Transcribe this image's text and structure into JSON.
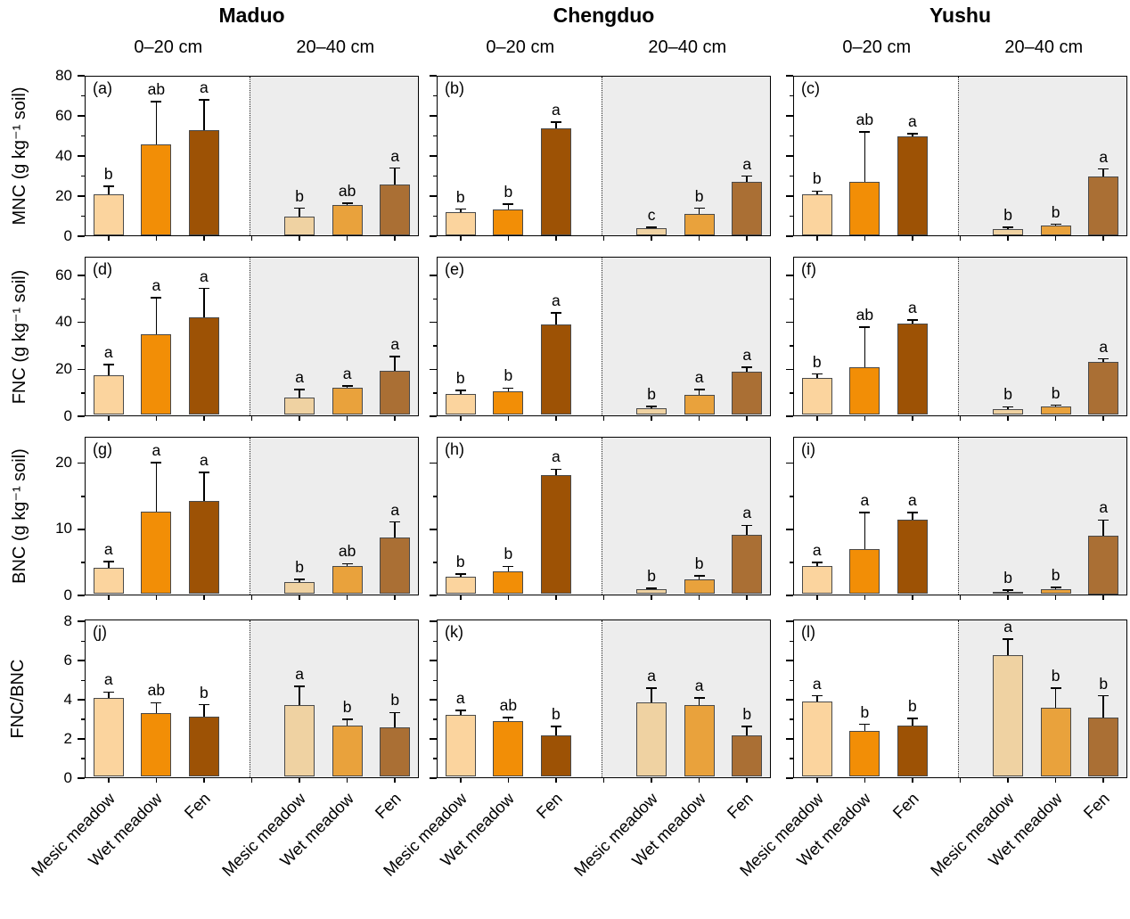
{
  "styles": {
    "bar_colors_0_20": [
      "#FBD49E",
      "#F28E06",
      "#9D5205"
    ],
    "bar_colors_20_40": [
      "#EFD2A2",
      "#E9A23C",
      "#AA6F34"
    ],
    "shade_color": "#EDEDED",
    "frame_color": "#000000"
  },
  "chart_data": {
    "type": "bar",
    "categories": [
      "Mesic meadow",
      "Wet meadow",
      "Fen"
    ],
    "sites": [
      "Maduo",
      "Chengduo",
      "Yushu"
    ],
    "depth_labels": [
      "0–20 cm",
      "20–40 cm"
    ],
    "legend": "none",
    "grid": false,
    "error_bars": true,
    "rows": [
      {
        "ylabel": "MNC (g kg⁻¹ soil)",
        "ylim": [
          0,
          80
        ],
        "major_ticks": [
          0,
          20,
          40,
          60,
          80
        ],
        "minor_ticks": [
          10,
          30,
          50,
          70
        ],
        "panels": [
          {
            "letter": "(a)",
            "site": "Maduo",
            "halves": [
              {
                "depth": "0–20 cm",
                "values": [
                  21,
                  46,
                  53
                ],
                "errors": [
                  4,
                  21,
                  15
                ],
                "sig": [
                  "b",
                  "ab",
                  "a"
                ]
              },
              {
                "depth": "20–40 cm",
                "values": [
                  10,
                  15.5,
                  26
                ],
                "errors": [
                  4,
                  1,
                  8
                ],
                "sig": [
                  "b",
                  "ab",
                  "a"
                ]
              }
            ]
          },
          {
            "letter": "(b)",
            "site": "Chengduo",
            "halves": [
              {
                "depth": "0–20 cm",
                "values": [
                  12,
                  13.5,
                  54
                ],
                "errors": [
                  1.5,
                  2.5,
                  3
                ],
                "sig": [
                  "b",
                  "b",
                  "a"
                ]
              },
              {
                "depth": "20–40 cm",
                "values": [
                  4,
                  11,
                  27
                ],
                "errors": [
                  0.5,
                  3,
                  3
                ],
                "sig": [
                  "c",
                  "b",
                  "a"
                ]
              }
            ]
          },
          {
            "letter": "(c)",
            "site": "Yushu",
            "halves": [
              {
                "depth": "0–20 cm",
                "values": [
                  21,
                  27,
                  50
                ],
                "errors": [
                  1.5,
                  25,
                  1
                ],
                "sig": [
                  "b",
                  "ab",
                  "a"
                ]
              },
              {
                "depth": "20–40 cm",
                "values": [
                  3.5,
                  5.5,
                  30
                ],
                "errors": [
                  1,
                  0.5,
                  3.5
                ],
                "sig": [
                  "b",
                  "b",
                  "a"
                ]
              }
            ]
          }
        ]
      },
      {
        "ylabel": "FNC (g kg⁻¹ soil)",
        "ylim": [
          0,
          68
        ],
        "major_ticks": [
          0,
          20,
          40,
          60
        ],
        "minor_ticks": [
          10,
          30,
          50
        ],
        "panels": [
          {
            "letter": "(d)",
            "site": "Maduo",
            "halves": [
              {
                "depth": "0–20 cm",
                "values": [
                  17.5,
                  35,
                  42
                ],
                "errors": [
                  4.5,
                  15.5,
                  12.5
                ],
                "sig": [
                  "a",
                  "a",
                  "a"
                ]
              },
              {
                "depth": "20–40 cm",
                "values": [
                  8,
                  12,
                  19.5
                ],
                "errors": [
                  3.5,
                  1,
                  6
                ],
                "sig": [
                  "a",
                  "a",
                  "a"
                ]
              }
            ]
          },
          {
            "letter": "(e)",
            "site": "Chengduo",
            "halves": [
              {
                "depth": "0–20 cm",
                "values": [
                  9.5,
                  10.5,
                  39
                ],
                "errors": [
                  1.5,
                  1.5,
                  5
                ],
                "sig": [
                  "b",
                  "b",
                  "a"
                ]
              },
              {
                "depth": "20–40 cm",
                "values": [
                  3.5,
                  9,
                  19
                ],
                "errors": [
                  0.7,
                  2.5,
                  2
                ],
                "sig": [
                  "b",
                  "a",
                  "a"
                ]
              }
            ]
          },
          {
            "letter": "(f)",
            "site": "Yushu",
            "halves": [
              {
                "depth": "0–20 cm",
                "values": [
                  16.5,
                  21,
                  39.5
                ],
                "errors": [
                  1.5,
                  17,
                  1.5
                ],
                "sig": [
                  "b",
                  "ab",
                  "a"
                ]
              },
              {
                "depth": "20–40 cm",
                "values": [
                  3,
                  4,
                  23
                ],
                "errors": [
                  1,
                  0.7,
                  1.5
                ],
                "sig": [
                  "b",
                  "b",
                  "a"
                ]
              }
            ]
          }
        ]
      },
      {
        "ylabel": "BNC (g kg⁻¹ soil)",
        "ylim": [
          0,
          24
        ],
        "major_ticks": [
          0,
          10,
          20
        ],
        "minor_ticks": [
          5,
          15
        ],
        "panels": [
          {
            "letter": "(g)",
            "site": "Maduo",
            "halves": [
              {
                "depth": "0–20 cm",
                "values": [
                  4.2,
                  12.7,
                  14.3
                ],
                "errors": [
                  0.9,
                  7.4,
                  4.3
                ],
                "sig": [
                  "a",
                  "a",
                  "a"
                ]
              },
              {
                "depth": "20–40 cm",
                "values": [
                  2,
                  4.4,
                  8.7
                ],
                "errors": [
                  0.4,
                  0.4,
                  2.4
                ],
                "sig": [
                  "b",
                  "ab",
                  "a"
                ]
              }
            ]
          },
          {
            "letter": "(h)",
            "site": "Chengduo",
            "halves": [
              {
                "depth": "0–20 cm",
                "values": [
                  2.8,
                  3.6,
                  18.2
                ],
                "errors": [
                  0.4,
                  0.8,
                  0.9
                ],
                "sig": [
                  "b",
                  "b",
                  "a"
                ]
              },
              {
                "depth": "20–40 cm",
                "values": [
                  0.9,
                  2.4,
                  9.2
                ],
                "errors": [
                  0.2,
                  0.6,
                  1.4
                ],
                "sig": [
                  "b",
                  "b",
                  "a"
                ]
              }
            ]
          },
          {
            "letter": "(i)",
            "site": "Yushu",
            "halves": [
              {
                "depth": "0–20 cm",
                "values": [
                  4.4,
                  7,
                  11.5
                ],
                "errors": [
                  0.6,
                  5.5,
                  1
                ],
                "sig": [
                  "a",
                  "a",
                  "a"
                ]
              },
              {
                "depth": "20–40 cm",
                "values": [
                  0.5,
                  1,
                  9
                ],
                "errors": [
                  0.3,
                  0.2,
                  2.4
                ],
                "sig": [
                  "b",
                  "b",
                  "a"
                ]
              }
            ]
          }
        ]
      },
      {
        "ylabel": "FNC/BNC",
        "ylim": [
          0,
          8.1
        ],
        "major_ticks": [
          0,
          2,
          4,
          6,
          8
        ],
        "minor_ticks": [
          1,
          3,
          5,
          7
        ],
        "panels": [
          {
            "letter": "(j)",
            "site": "Maduo",
            "halves": [
              {
                "depth": "0–20 cm",
                "values": [
                  4.1,
                  3.3,
                  3.15
                ],
                "errors": [
                  0.3,
                  0.55,
                  0.6
                ],
                "sig": [
                  "a",
                  "ab",
                  "b"
                ]
              },
              {
                "depth": "20–40 cm",
                "values": [
                  3.75,
                  2.7,
                  2.6
                ],
                "errors": [
                  0.95,
                  0.3,
                  0.75
                ],
                "sig": [
                  "a",
                  "b",
                  "b"
                ]
              }
            ]
          },
          {
            "letter": "(k)",
            "site": "Chengduo",
            "halves": [
              {
                "depth": "0–20 cm",
                "values": [
                  3.25,
                  2.9,
                  2.2
                ],
                "errors": [
                  0.2,
                  0.2,
                  0.45
                ],
                "sig": [
                  "a",
                  "ab",
                  "b"
                ]
              },
              {
                "depth": "20–40 cm",
                "values": [
                  3.85,
                  3.75,
                  2.2
                ],
                "errors": [
                  0.75,
                  0.35,
                  0.45
                ],
                "sig": [
                  "a",
                  "a",
                  "b"
                ]
              }
            ]
          },
          {
            "letter": "(l)",
            "site": "Yushu",
            "halves": [
              {
                "depth": "0–20 cm",
                "values": [
                  3.9,
                  2.4,
                  2.7
                ],
                "errors": [
                  0.3,
                  0.35,
                  0.35
                ],
                "sig": [
                  "a",
                  "b",
                  "b"
                ]
              },
              {
                "depth": "20–40 cm",
                "values": [
                  6.3,
                  3.6,
                  3.1
                ],
                "errors": [
                  0.8,
                  1.0,
                  1.1
                ],
                "sig": [
                  "a",
                  "b",
                  "b"
                ]
              }
            ]
          }
        ]
      }
    ]
  }
}
